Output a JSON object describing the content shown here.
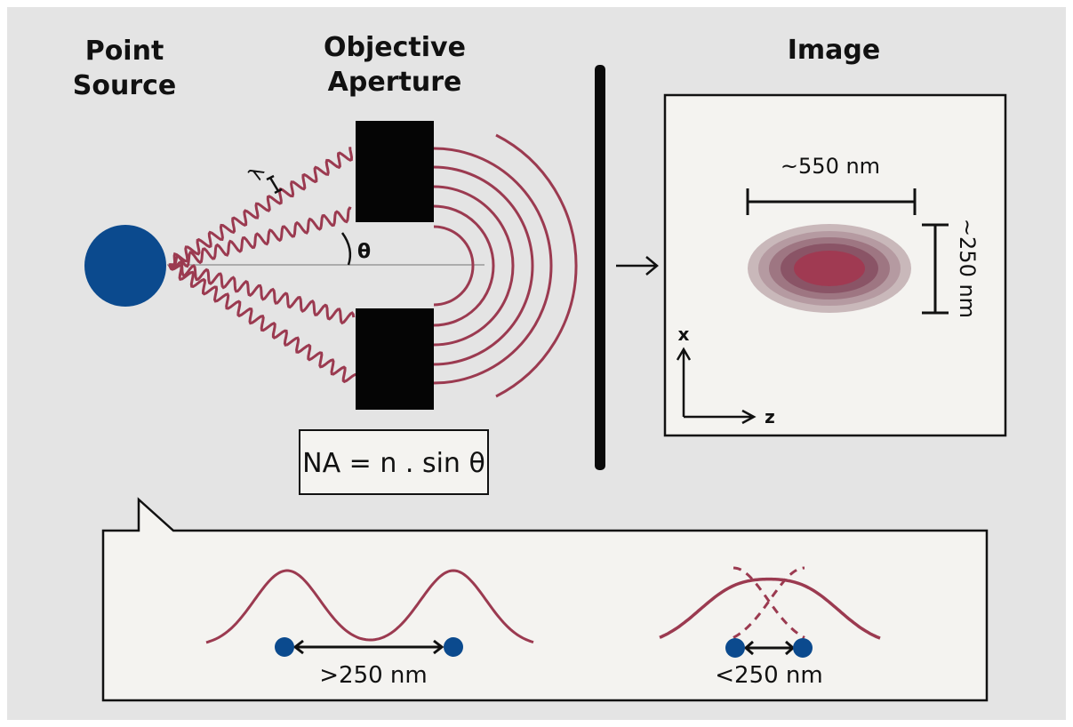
{
  "titles": {
    "point_source_line1": "Point",
    "point_source_line2": "Source",
    "aperture_line1": "Objective",
    "aperture_line2": "Aperture",
    "image": "Image"
  },
  "labels": {
    "lambda": "λ",
    "theta": "θ",
    "formula": "NA = n . sin θ",
    "width": "~550 nm",
    "height": "~250 nm",
    "axis_x": "x",
    "axis_z": "z",
    "resolved": ">250 nm",
    "unresolved": "<250 nm"
  },
  "colors": {
    "background": "#e4e4e4",
    "panel": "#f4f3f0",
    "wave": "#9b3a50",
    "source": "#0b4a8e",
    "ink": "#111111"
  }
}
